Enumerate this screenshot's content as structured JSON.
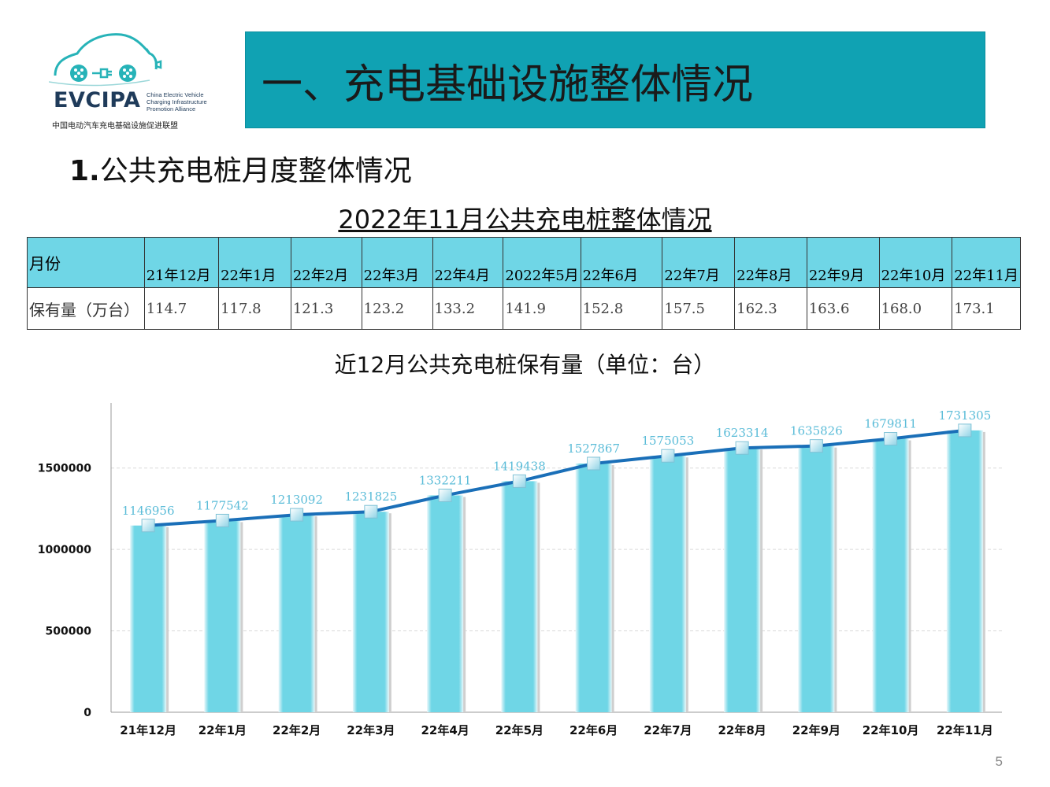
{
  "logo": {
    "name": "EVCIPA",
    "tagline": "China Electric Vehicle Charging Infrastructure Promotion Alliance",
    "cn": "中国电动汽车充电基础设施促进联盟"
  },
  "header": {
    "title": "一、充电基础设施整体情况"
  },
  "section": {
    "number": "1.",
    "title": "公共充电桩月度整体情况"
  },
  "table": {
    "title": "2022年11月公共充电桩整体情况",
    "row_labels": [
      "月份",
      "保有量（万台）"
    ],
    "months": [
      "21年12月",
      "22年1月",
      "22年2月",
      "22年3月",
      "22年4月",
      "2022年5月",
      "22年6月",
      "22年7月",
      "22年8月",
      "22年9月",
      "22年10月",
      "22年11月"
    ],
    "values": [
      "114.7",
      "117.8",
      "121.3",
      "123.2",
      "133.2",
      "141.9",
      "152.8",
      "157.5",
      "162.3",
      "163.6",
      "168.0",
      "173.1"
    ]
  },
  "chart_data": {
    "type": "bar",
    "title": "近12月公共充电桩保有量（单位：台）",
    "categories": [
      "21年12月",
      "22年1月",
      "22年2月",
      "22年3月",
      "22年4月",
      "22年5月",
      "22年6月",
      "22年7月",
      "22年8月",
      "22年9月",
      "22年10月",
      "22年11月"
    ],
    "values": [
      1146956,
      1177542,
      1213092,
      1231825,
      1332211,
      1419438,
      1527867,
      1575053,
      1623314,
      1635826,
      1679811,
      1731305
    ],
    "overlay_line": true,
    "ylim": [
      0,
      1900000
    ],
    "yticks": [
      "0",
      "500000",
      "1000000",
      "1500000"
    ],
    "grid": "horizontal dashed",
    "legend": "none",
    "colors": {
      "bar": "#6fd6e6",
      "line": "#1a6fb8",
      "label": "#5bbcd8"
    }
  },
  "footer": {
    "page": "5"
  }
}
